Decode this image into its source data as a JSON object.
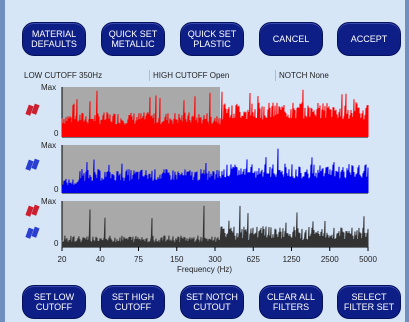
{
  "top_buttons": {
    "material_defaults": "MATERIAL\nDEFAULTS",
    "quick_set_metallic": "QUICK SET\nMETALLIC",
    "quick_set_plastic": "QUICK SET\nPLASTIC",
    "cancel": "CANCEL",
    "accept": "ACCEPT"
  },
  "status": {
    "low_cutoff": "LOW CUTOFF 350Hz",
    "high_cutoff": "HIGH CUTOFF Open",
    "notch": "NOTCH None"
  },
  "panels": [
    {
      "ymax": "Max",
      "ymin": "0",
      "color": "#ff0000",
      "icon": "red-marker-icon"
    },
    {
      "ymax": "Max",
      "ymin": "0",
      "color": "#0000ee",
      "icon": "blue-marker-icon"
    },
    {
      "ymax": "Max",
      "ymin": "0",
      "color": "#333333",
      "icon": "red-blue-marker-icon"
    }
  ],
  "x_axis": {
    "label": "Frequency (Hz)",
    "ticks": [
      "20",
      "40",
      "75",
      "150",
      "300",
      "625",
      "1250",
      "2500",
      "5000"
    ]
  },
  "bottom_buttons": {
    "set_low_cutoff": "SET LOW\nCUTOFF",
    "set_high_cutoff": "SET HIGH\nCUTOFF",
    "set_notch_cutout": "SET NOTCH\nCUTOUT",
    "clear_all_filters": "CLEAR ALL\nFILTERS",
    "select_filter_set": "SELECT\nFILTER SET"
  },
  "colors": {
    "button": "#0e1e87",
    "shade": "#a9a9a9",
    "background": "#d6e6f7"
  }
}
